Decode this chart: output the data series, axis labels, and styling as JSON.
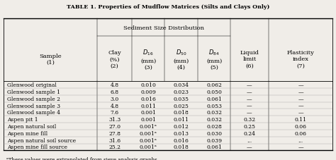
{
  "title": "TABLE 1. Properties of Mudflow Matrices (Silts and Clays Only)",
  "subtitle": "Sediment Size Distribution",
  "rows": [
    [
      "Glenwood original",
      "4.8",
      "0.010",
      "0.034",
      "0.062",
      "—",
      "—"
    ],
    [
      "Glenwood sample 1",
      "6.8",
      "0.009",
      "0.023",
      "0.050",
      "—",
      "—"
    ],
    [
      "Glenwood sample 2",
      "3.0",
      "0.016",
      "0.035",
      "0.061",
      "—",
      "—"
    ],
    [
      "Glenwood sample 3",
      "4.8",
      "0.011",
      "0.025",
      "0.053",
      "—",
      "—"
    ],
    [
      "Glenwood sample 4",
      "7.6",
      "0.001",
      "0.018",
      "0.032",
      "—",
      "—"
    ],
    [
      "Aspen pit 1",
      "31.3",
      "0.001",
      "0.011",
      "0.032",
      "0.32",
      "0.11"
    ],
    [
      "Aspen natural soil",
      "27.0",
      "0.001ᵃ",
      "0.012",
      "0.028",
      "0.25",
      "0.06"
    ],
    [
      "Aspen mine fill",
      "27.8",
      "0.001ᵃ",
      "0.013",
      "0.030",
      "0.24",
      "0.06"
    ],
    [
      "Aspen natural soil source",
      "31.6",
      "0.001ᵃ",
      "0.016",
      "0.039",
      "...",
      "..."
    ],
    [
      "Aspen mine fill source",
      "25.2",
      "0.001ᵃ",
      "0.018",
      "0.061",
      "—",
      "—"
    ]
  ],
  "footnote": "ᵃThese values were extrapolated from sieve analysis graphs.",
  "bg_color": "#f0ede8",
  "title_fontsize": 5.8,
  "header_fontsize": 6.0,
  "data_fontsize": 5.5,
  "footnote_fontsize": 5.0,
  "col_splits": [
    0.0,
    0.285,
    0.39,
    0.49,
    0.59,
    0.69,
    0.805,
    1.0
  ]
}
